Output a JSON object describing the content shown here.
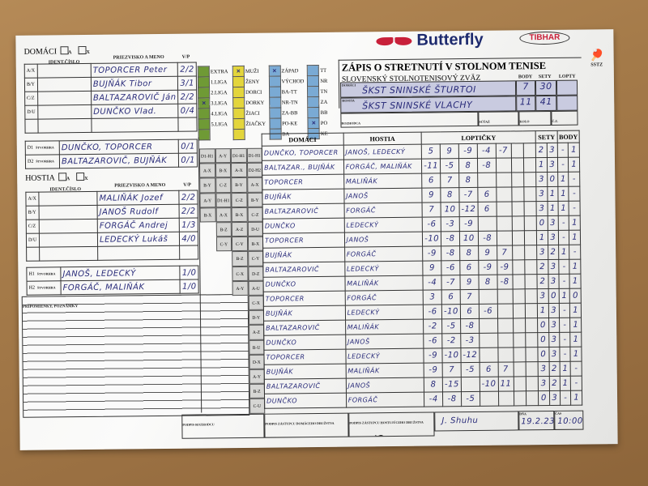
{
  "brand": {
    "logo": "Butterfly",
    "logo2": "TIBHAR",
    "badge": "SSTZ"
  },
  "title": "ZÁPIS O STRETNUTÍ V STOLNOM TENISE",
  "subtitle": "SLOVENSKÝ STOLNOTENISOVÝ ZVÄZ",
  "labels": {
    "body": "BODY",
    "sety": "SETY",
    "lopty": "LOPTY",
    "sutaz": "SÚŤAŽ",
    "kolo": "KOLO",
    "cz": "Č.Z.",
    "rozhodca": "ROZHODCA",
    "domaci": "DOMÁCI",
    "hostia": "HOSTIA",
    "lopticky": "LOPTIČKY",
    "ident": "IDENT.ČÍSLO",
    "meno": "PRIEZVISKO A MENO",
    "vp": "V/P",
    "stvorhra": "ŠTVORHRA",
    "poznamky": "PRIPOMIENKY, POZNÁMKY",
    "podpis_rozhodcu": "PODPIS ROZHODCU",
    "podpis_dom": "PODPIS ZÁSTUPCU DOMÁCEHO DRUŽSTVA",
    "podpis_host": "PODPIS ZÁSTUPCU HOSTUJÚCEHO DRUŽSTVA",
    "dna": "DŇA",
    "cas": "ČAS",
    "check_a": "A",
    "check_x": "X"
  },
  "teams": {
    "home": {
      "name": "ŠKST SNINSKÉ ŠTURTOI",
      "body": "7",
      "sety": "30"
    },
    "guest": {
      "name": "ŠKST SNINSKÉ VLACHY",
      "body": "11",
      "sety": "41"
    }
  },
  "home_players": [
    {
      "code": "A/X",
      "name": "TOPORCER Peter",
      "vp": "2/2"
    },
    {
      "code": "B/Y",
      "name": "BUJŇÁK Tibor",
      "vp": "3/1"
    },
    {
      "code": "C/Z",
      "name": "BALTAZAROVIČ Ján",
      "vp": "2/2"
    },
    {
      "code": "D/U",
      "name": "DUNČKO Vlad.",
      "vp": "0/4"
    },
    {
      "code": "",
      "name": "",
      "vp": ""
    }
  ],
  "home_doubles": [
    {
      "code": "D1",
      "name": "DUNČKO, TOPORCER",
      "vp": "0/1"
    },
    {
      "code": "D2",
      "name": "BALTAZAROVIČ, BUJŇÁK",
      "vp": "0/1"
    }
  ],
  "guest_players": [
    {
      "code": "A/X",
      "name": "MALIŇÁK Jozef",
      "vp": "2/2"
    },
    {
      "code": "B/Y",
      "name": "JANOŠ Rudolf",
      "vp": "2/2"
    },
    {
      "code": "C/Z",
      "name": "FORGÁČ Andrej",
      "vp": "1/3"
    },
    {
      "code": "D/U",
      "name": "LEDECKÝ Lukáš",
      "vp": "4/0"
    },
    {
      "code": "",
      "name": "",
      "vp": ""
    }
  ],
  "guest_doubles": [
    {
      "code": "H1",
      "name": "JANOŠ, LEDECKÝ",
      "vp": "1/0"
    },
    {
      "code": "H2",
      "name": "FORGÁČ, MALIŇÁK",
      "vp": "1/0"
    }
  ],
  "categories": [
    {
      "color": "#6f9a35",
      "items": [
        {
          "l": "EXTRA",
          "x": false
        },
        {
          "l": "1.LIGA",
          "x": false
        },
        {
          "l": "2.LIGA",
          "x": false
        },
        {
          "l": "3.LIGA",
          "x": true
        },
        {
          "l": "4.LIGA",
          "x": false
        },
        {
          "l": "5.LIGA",
          "x": false
        },
        {
          "l": "",
          "x": false
        }
      ]
    },
    {
      "color": "#e3d53c",
      "items": [
        {
          "l": "MUŽI",
          "x": true
        },
        {
          "l": "ŽENY",
          "x": false
        },
        {
          "l": "DORCI",
          "x": false
        },
        {
          "l": "DORKY",
          "x": false
        },
        {
          "l": "ŽIACI",
          "x": false
        },
        {
          "l": "ŽIAČKY",
          "x": false
        },
        {
          "l": "",
          "x": false
        }
      ]
    },
    {
      "color": "#7aaad4",
      "items": [
        {
          "l": "ZÁPAD",
          "x": true
        },
        {
          "l": "VÝCHOD",
          "x": false
        },
        {
          "l": "BA-TT",
          "x": false
        },
        {
          "l": "NR-TN",
          "x": false
        },
        {
          "l": "ZA-BB",
          "x": false
        },
        {
          "l": "PO-KE",
          "x": false
        },
        {
          "l": "BA",
          "x": false
        }
      ]
    },
    {
      "color": "#7aaad4",
      "items": [
        {
          "l": "TT",
          "x": false
        },
        {
          "l": "NR",
          "x": false
        },
        {
          "l": "TN",
          "x": false
        },
        {
          "l": "ZA",
          "x": false
        },
        {
          "l": "BB",
          "x": false
        },
        {
          "l": "PO",
          "x": true
        },
        {
          "l": "KE",
          "x": false
        }
      ]
    }
  ],
  "order_columns": [
    [
      "D1-H1",
      "A-X",
      "B-Y",
      "A-Y",
      "B-X"
    ],
    [
      "A-Y",
      "B-X",
      "C-Z",
      "D1-H1",
      "A-X",
      "B-Z",
      "C-Y"
    ],
    [
      "D1-H1",
      "A-X",
      "B-Y",
      "C-Z",
      "B-X",
      "A-Z",
      "C-Y",
      "B-Z",
      "C-X",
      "A-Y"
    ],
    [
      "D1-H1",
      "D2-H2",
      "A-X",
      "B-Y",
      "C-Z",
      "D-U",
      "B-X",
      "C-Y",
      "D-Z",
      "A-U",
      "C-X",
      "D-Y",
      "A-Z",
      "B-U",
      "D-X",
      "A-Y",
      "B-Z",
      "C-U"
    ]
  ],
  "matches": [
    {
      "home": "DUNČKO, TOPORCER",
      "guest": "JANOŠ, LEDECKÝ",
      "sets": [
        "5",
        "9",
        "-9",
        "-4",
        "-7"
      ],
      "s": [
        "2",
        "3"
      ],
      "b": [
        "-",
        "1"
      ]
    },
    {
      "home": "BALTAZAR., BUJŇÁK",
      "guest": "FORGÁČ, MALIŇÁK",
      "sets": [
        "-11",
        "-5",
        "8",
        "-8"
      ],
      "s": [
        "1",
        "3"
      ],
      "b": [
        "-",
        "1"
      ]
    },
    {
      "home": "TOPORCER",
      "guest": "MALIŇÁK",
      "sets": [
        "6",
        "7",
        "8"
      ],
      "s": [
        "3",
        "0"
      ],
      "b": [
        "1",
        "-"
      ]
    },
    {
      "home": "BUJŇÁK",
      "guest": "JANOŠ",
      "sets": [
        "9",
        "8",
        "-7",
        "6"
      ],
      "s": [
        "3",
        "1"
      ],
      "b": [
        "1",
        "-"
      ]
    },
    {
      "home": "BALTAZAROVIČ",
      "guest": "FORGÁČ",
      "sets": [
        "7",
        "10",
        "-12",
        "6"
      ],
      "s": [
        "3",
        "1"
      ],
      "b": [
        "1",
        "-"
      ]
    },
    {
      "home": "DUNČKO",
      "guest": "LEDECKÝ",
      "sets": [
        "-6",
        "-3",
        "-9"
      ],
      "s": [
        "0",
        "3"
      ],
      "b": [
        "-",
        "1"
      ]
    },
    {
      "home": "TOPORCER",
      "guest": "JANOŠ",
      "sets": [
        "-10",
        "-8",
        "10",
        "-8"
      ],
      "s": [
        "1",
        "3"
      ],
      "b": [
        "-",
        "1"
      ]
    },
    {
      "home": "BUJŇÁK",
      "guest": "FORGÁČ",
      "sets": [
        "-9",
        "-8",
        "8",
        "9",
        "7"
      ],
      "s": [
        "3",
        "2"
      ],
      "b": [
        "1",
        "-"
      ]
    },
    {
      "home": "BALTAZAROVIČ",
      "guest": "LEDECKÝ",
      "sets": [
        "9",
        "-6",
        "6",
        "-9",
        "-9"
      ],
      "s": [
        "2",
        "3"
      ],
      "b": [
        "-",
        "1"
      ]
    },
    {
      "home": "DUNČKO",
      "guest": "MALIŇÁK",
      "sets": [
        "-4",
        "-7",
        "9",
        "8",
        "-8"
      ],
      "s": [
        "2",
        "3"
      ],
      "b": [
        "-",
        "1"
      ]
    },
    {
      "home": "TOPORCER",
      "guest": "FORGÁČ",
      "sets": [
        "3",
        "6",
        "7"
      ],
      "s": [
        "3",
        "0"
      ],
      "b": [
        "1",
        "0"
      ]
    },
    {
      "home": "BUJŇÁK",
      "guest": "LEDECKÝ",
      "sets": [
        "-6",
        "-10",
        "6",
        "-6"
      ],
      "s": [
        "1",
        "3"
      ],
      "b": [
        "-",
        "1"
      ]
    },
    {
      "home": "BALTAZAROVIČ",
      "guest": "MALIŇÁK",
      "sets": [
        "-2",
        "-5",
        "-8"
      ],
      "s": [
        "0",
        "3"
      ],
      "b": [
        "-",
        "1"
      ]
    },
    {
      "home": "DUNČKO",
      "guest": "JANOŠ",
      "sets": [
        "-6",
        "-2",
        "-3"
      ],
      "s": [
        "0",
        "3"
      ],
      "b": [
        "-",
        "1"
      ]
    },
    {
      "home": "TOPORCER",
      "guest": "LEDECKÝ",
      "sets": [
        "-9",
        "-10",
        "-12"
      ],
      "s": [
        "0",
        "3"
      ],
      "b": [
        "-",
        "1"
      ]
    },
    {
      "home": "BUJŇÁK",
      "guest": "MALIŇÁK",
      "sets": [
        "-9",
        "7",
        "-5",
        "6",
        "7"
      ],
      "s": [
        "3",
        "2"
      ],
      "b": [
        "1",
        "-"
      ]
    },
    {
      "home": "BALTAZAROVIČ",
      "guest": "JANOŠ",
      "sets": [
        "8",
        "-15",
        "",
        "-10",
        "11"
      ],
      "s": [
        "3",
        "2"
      ],
      "b": [
        "1",
        "-"
      ]
    },
    {
      "home": "DUNČKO",
      "guest": "FORGÁČ",
      "sets": [
        "-4",
        "-8",
        "-5"
      ],
      "s": [
        "0",
        "3"
      ],
      "b": [
        "-",
        "1"
      ]
    }
  ],
  "footer": {
    "signature": "J. Shuhu",
    "date": "19.2.23",
    "time": "10:00"
  }
}
